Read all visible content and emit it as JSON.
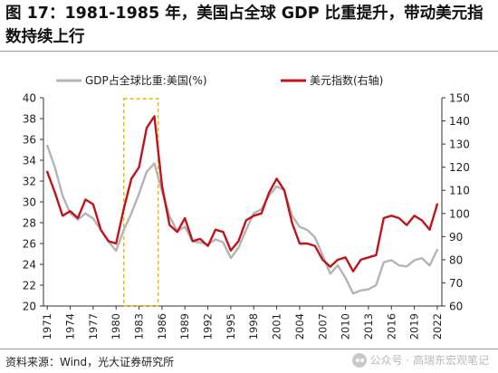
{
  "title": "图 17：1981-1985 年，美国占全球 GDP 比重提升，带动美元指数持续上行",
  "source": "资料来源：Wind，光大证券研究所",
  "watermark": "公众号 · 高瑞东宏观笔记",
  "colors": {
    "gdp_share": "#b4b4b4",
    "usd_index": "#c0141c",
    "highlight": "#f0b400"
  },
  "chart_data": {
    "type": "line",
    "x": [
      1971,
      1972,
      1973,
      1974,
      1975,
      1976,
      1977,
      1978,
      1979,
      1980,
      1981,
      1982,
      1983,
      1984,
      1985,
      1986,
      1987,
      1988,
      1989,
      1990,
      1991,
      1992,
      1993,
      1994,
      1995,
      1996,
      1997,
      1998,
      1999,
      2000,
      2001,
      2002,
      2003,
      2004,
      2005,
      2006,
      2007,
      2008,
      2009,
      2010,
      2011,
      2012,
      2013,
      2014,
      2015,
      2016,
      2017,
      2018,
      2019,
      2020,
      2021,
      2022
    ],
    "x_ticks": [
      "1971",
      "1974",
      "1977",
      "1980",
      "1983",
      "1986",
      "1989",
      "1992",
      "1995",
      "1998",
      "2001",
      "2004",
      "2007",
      "2010",
      "2013",
      "2016",
      "2019",
      "2022"
    ],
    "xlim": [
      1970.5,
      2022.6
    ],
    "series": [
      {
        "name": "GDP占全球比重:美国(%)",
        "axis": "left",
        "values": [
          35.4,
          33.3,
          30.6,
          28.9,
          28.3,
          28.9,
          28.4,
          27.3,
          26.2,
          25.3,
          27.3,
          28.9,
          30.8,
          32.9,
          33.7,
          31.0,
          28.6,
          27.2,
          27.6,
          26.2,
          26.1,
          25.9,
          26.4,
          26.1,
          24.6,
          25.6,
          27.3,
          28.9,
          29.3,
          30.6,
          31.5,
          31.1,
          28.7,
          27.6,
          27.3,
          26.6,
          24.9,
          23.1,
          23.9,
          22.7,
          21.2,
          21.5,
          21.6,
          22.0,
          24.2,
          24.4,
          23.9,
          23.8,
          24.4,
          24.6,
          23.9,
          25.4
        ]
      },
      {
        "name": "美元指数(右轴)",
        "axis": "right",
        "values": [
          118,
          109,
          99,
          101,
          98,
          106,
          104,
          93,
          88,
          87,
          102,
          115,
          120,
          137,
          142,
          112,
          95,
          92,
          98,
          88,
          89,
          86,
          93,
          92,
          84,
          88,
          97,
          99,
          100,
          109,
          115,
          110,
          96,
          87,
          87,
          86,
          80,
          77,
          80,
          81,
          75,
          80,
          81,
          82,
          98,
          99,
          98,
          95,
          99,
          97,
          93,
          104
        ]
      }
    ],
    "highlight": {
      "x_from": 1981,
      "x_to": 1985.5
    },
    "ylim": [
      20,
      40
    ],
    "yticks": [
      "20",
      "22",
      "24",
      "26",
      "28",
      "30",
      "32",
      "34",
      "36",
      "38",
      "40"
    ],
    "y2lim": [
      60,
      150
    ],
    "y2ticks": [
      "60",
      "70",
      "80",
      "90",
      "100",
      "110",
      "120",
      "130",
      "140",
      "150"
    ],
    "legend": "top-left"
  }
}
